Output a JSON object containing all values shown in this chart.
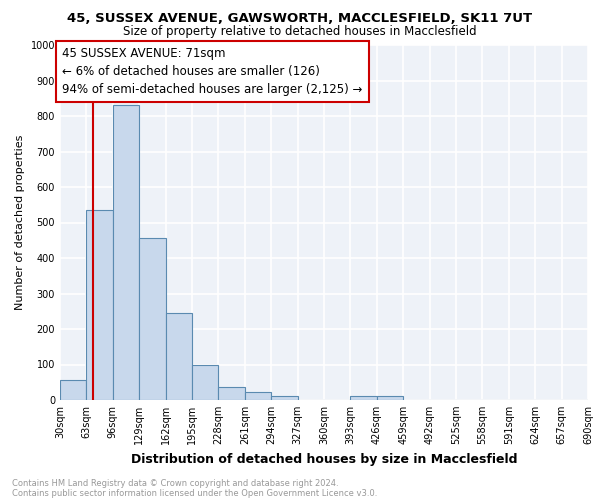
{
  "title1": "45, SUSSEX AVENUE, GAWSWORTH, MACCLESFIELD, SK11 7UT",
  "title2": "Size of property relative to detached houses in Macclesfield",
  "xlabel": "Distribution of detached houses by size in Macclesfield",
  "ylabel": "Number of detached properties",
  "footnote1": "Contains HM Land Registry data © Crown copyright and database right 2024.",
  "footnote2": "Contains public sector information licensed under the Open Government Licence v3.0.",
  "bar_edges": [
    30,
    63,
    96,
    129,
    162,
    195,
    228,
    261,
    294,
    327,
    360,
    393,
    426,
    459,
    492,
    525,
    558,
    591,
    624,
    657,
    690
  ],
  "bar_heights": [
    55,
    535,
    830,
    455,
    245,
    100,
    37,
    22,
    10,
    0,
    0,
    12,
    12,
    0,
    0,
    0,
    0,
    0,
    0,
    0
  ],
  "bar_color": "#c8d8ec",
  "bar_edge_color": "#5a8ab0",
  "property_size": 71,
  "property_line_color": "#cc0000",
  "annotation_text": "45 SUSSEX AVENUE: 71sqm\n← 6% of detached houses are smaller (126)\n94% of semi-detached houses are larger (2,125) →",
  "annotation_box_color": "#cc0000",
  "ylim": [
    0,
    1000
  ],
  "yticks": [
    0,
    100,
    200,
    300,
    400,
    500,
    600,
    700,
    800,
    900,
    1000
  ],
  "background_color": "#eef2f8",
  "grid_color": "#ffffff",
  "title1_fontsize": 9.5,
  "title2_fontsize": 8.5,
  "xlabel_fontsize": 9,
  "ylabel_fontsize": 8,
  "tick_fontsize": 7,
  "annotation_fontsize": 8.5,
  "footnote_fontsize": 6,
  "footnote_color": "#999999"
}
